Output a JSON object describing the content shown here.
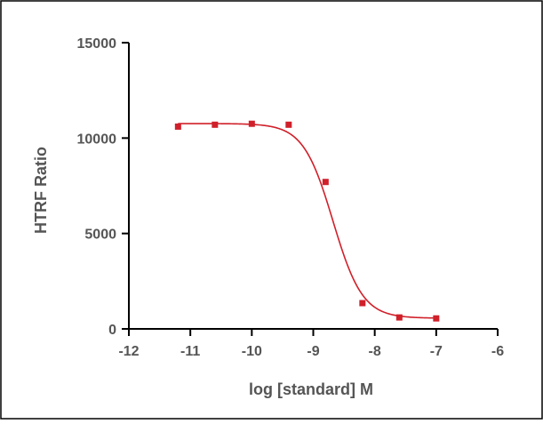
{
  "chart_data": {
    "type": "scatter",
    "title": "",
    "xlabel": "log [standard] M",
    "ylabel": "HTRF Ratio",
    "xlim": [
      -12,
      -6
    ],
    "ylim": [
      0,
      15000
    ],
    "x_ticks": [
      -12,
      -11,
      -10,
      -9,
      -8,
      -7,
      -6
    ],
    "x_tick_labels": [
      "-12",
      "-11",
      "-10",
      "-9",
      "-8",
      "-7",
      "-6"
    ],
    "y_ticks": [
      0,
      5000,
      10000,
      15000
    ],
    "y_tick_labels": [
      "0",
      "5000",
      "10000",
      "15000"
    ],
    "grid": false,
    "colors": {
      "series": "#d0202a",
      "axis": "#000000",
      "text": "#555555"
    },
    "series": [
      {
        "x": [
          -11.2,
          -10.6,
          -10.0,
          -9.4,
          -8.8,
          -8.2,
          -7.6,
          -7.0
        ],
        "y": [
          10600,
          10700,
          10750,
          10700,
          7700,
          1350,
          600,
          550
        ],
        "marker": "square",
        "fit": "four-parameter logistic",
        "fit_params": {
          "top": 10760,
          "bottom": 560,
          "log_ic50": -8.68,
          "hill_slope": -1.8
        }
      }
    ]
  }
}
